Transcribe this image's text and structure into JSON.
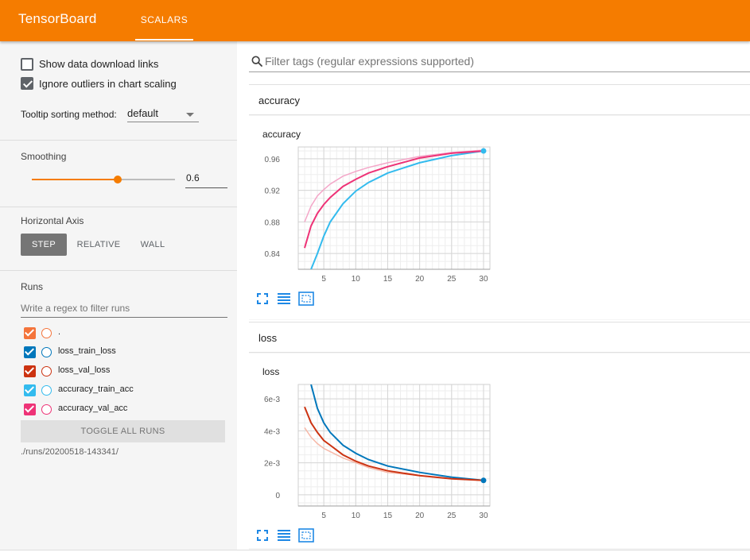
{
  "header": {
    "brand": "TensorBoard",
    "active_tab": "SCALARS"
  },
  "sidebar": {
    "options": [
      {
        "label": "Show data download links",
        "checked": false
      },
      {
        "label": "Ignore outliers in chart scaling",
        "checked": true
      }
    ],
    "tooltip_sorting": {
      "label": "Tooltip sorting method:",
      "value": "default"
    },
    "smoothing": {
      "title": "Smoothing",
      "value": "0.6",
      "fraction": 0.6
    },
    "horizontal_axis": {
      "title": "Horizontal Axis",
      "buttons": [
        "STEP",
        "RELATIVE",
        "WALL"
      ],
      "active": "STEP"
    },
    "runs": {
      "title": "Runs",
      "filter_placeholder": "Write a regex to filter runs",
      "items": [
        {
          "name": ".",
          "color": "#f4743b",
          "checked": true
        },
        {
          "name": "loss_train_loss",
          "color": "#0077bb",
          "checked": true
        },
        {
          "name": "loss_val_loss",
          "color": "#cc3311",
          "checked": true
        },
        {
          "name": "accuracy_train_acc",
          "color": "#33bbee",
          "checked": true
        },
        {
          "name": "accuracy_val_acc",
          "color": "#ee3377",
          "checked": true
        }
      ],
      "toggle_all": "TOGGLE ALL RUNS",
      "log_dir": "./runs/20200518-143341/"
    }
  },
  "main": {
    "filter_placeholder": "Filter tags (regular expressions supported)",
    "categories": [
      {
        "name": "accuracy",
        "card_title": "accuracy"
      },
      {
        "name": "loss",
        "card_title": "loss"
      }
    ]
  },
  "chart_data": [
    {
      "type": "line",
      "title": "accuracy",
      "xlim": [
        1,
        31
      ],
      "ylim": [
        0.82,
        0.975
      ],
      "x_ticks": [
        5,
        10,
        15,
        20,
        25,
        30
      ],
      "y_ticks": [
        0.84,
        0.88,
        0.92,
        0.96
      ],
      "y_tick_labels": [
        "0.84",
        "0.88",
        "0.92",
        "0.96"
      ],
      "series": [
        {
          "name": "accuracy_train_acc",
          "color": "#33bbee",
          "x": [
            3,
            4,
            5,
            6,
            8,
            10,
            12,
            15,
            20,
            25,
            30
          ],
          "y": [
            0.82,
            0.84,
            0.862,
            0.88,
            0.903,
            0.919,
            0.93,
            0.942,
            0.955,
            0.964,
            0.97
          ]
        },
        {
          "name": "accuracy_val_acc",
          "color": "#ee3377",
          "x": [
            2,
            3,
            4,
            5,
            6,
            8,
            10,
            12,
            15,
            20,
            25,
            30
          ],
          "y": [
            0.847,
            0.875,
            0.891,
            0.902,
            0.911,
            0.925,
            0.934,
            0.942,
            0.95,
            0.961,
            0.967,
            0.97
          ]
        },
        {
          "name": "accuracy_val_acc (raw)",
          "color": "#f4a6c8",
          "x": [
            2,
            3,
            4,
            5,
            6,
            8,
            10,
            12,
            15,
            20,
            25,
            30
          ],
          "y": [
            0.88,
            0.9,
            0.913,
            0.921,
            0.928,
            0.938,
            0.944,
            0.949,
            0.955,
            0.963,
            0.968,
            0.971
          ]
        }
      ]
    },
    {
      "type": "line",
      "title": "loss",
      "xlim": [
        1,
        31
      ],
      "ylim": [
        -0.0007,
        0.0069
      ],
      "x_ticks": [
        5,
        10,
        15,
        20,
        25,
        30
      ],
      "y_ticks": [
        0,
        0.002,
        0.004,
        0.006
      ],
      "y_tick_labels": [
        "0",
        "2e-3",
        "4e-3",
        "6e-3"
      ],
      "series": [
        {
          "name": "loss_train_loss",
          "color": "#0077bb",
          "x": [
            3,
            4,
            5,
            6,
            8,
            10,
            12,
            15,
            20,
            25,
            30
          ],
          "y": [
            0.0069,
            0.0054,
            0.0045,
            0.0039,
            0.0031,
            0.0026,
            0.0022,
            0.0018,
            0.0014,
            0.0011,
            0.0009
          ]
        },
        {
          "name": "loss_val_loss",
          "color": "#cc3311",
          "x": [
            2,
            3,
            4,
            5,
            6,
            8,
            10,
            12,
            15,
            20,
            25,
            30
          ],
          "y": [
            0.0055,
            0.0045,
            0.0039,
            0.0034,
            0.0031,
            0.0025,
            0.0021,
            0.0018,
            0.0015,
            0.0012,
            0.001,
            0.0009
          ]
        },
        {
          "name": "loss_val_loss (raw)",
          "color": "#f6b8a8",
          "x": [
            2,
            3,
            4,
            5,
            6,
            8,
            10,
            12,
            15,
            20,
            25,
            30
          ],
          "y": [
            0.0042,
            0.0036,
            0.0032,
            0.0029,
            0.0027,
            0.0023,
            0.002,
            0.0017,
            0.0014,
            0.0012,
            0.001,
            0.0009
          ]
        }
      ]
    }
  ]
}
